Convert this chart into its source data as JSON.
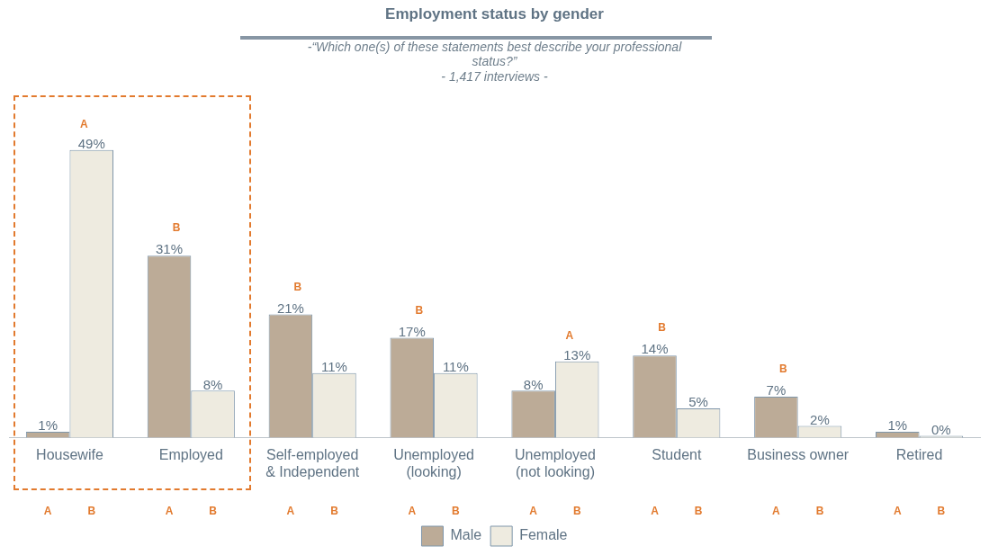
{
  "chart_data": {
    "type": "bar",
    "title": "Employment status by gender",
    "subtitle": "-“Which one(s) of these statements best describe your professional\nstatus?”\n- 1,417 interviews -",
    "categories": [
      "Housewife",
      "Employed",
      "Self-employed\n& Independent",
      "Unemployed\n(looking)",
      "Unemployed\n(not looking)",
      "Student",
      "Business owner",
      "Retired"
    ],
    "series": [
      {
        "name": "Male",
        "color": "#bcab97",
        "values": [
          1,
          31,
          21,
          17,
          8,
          14,
          7,
          1
        ],
        "value_labels": [
          "1%",
          "31%",
          "21%",
          "17%",
          "8%",
          "14%",
          "7%",
          "1%"
        ]
      },
      {
        "name": "Female",
        "color": "#eeebe0",
        "values": [
          49,
          8,
          11,
          11,
          13,
          5,
          2,
          0
        ],
        "value_labels": [
          "49%",
          "8%",
          "11%",
          "11%",
          "13%",
          "5%",
          "2%",
          "0%"
        ]
      }
    ],
    "annotations": [
      {
        "text": "A",
        "x": "Housewife",
        "y": 49
      },
      {
        "text": "B",
        "x": "Employed",
        "y": 31
      },
      {
        "text": "B",
        "x": "Self-employed\n& Independent",
        "y": 21
      },
      {
        "text": "B",
        "x": "Unemployed\n(looking)",
        "y": 17
      },
      {
        "text": "A",
        "x": "Unemployed\n(not looking)",
        "y": 13
      },
      {
        "text": "B",
        "x": "Student",
        "y": 14
      },
      {
        "text": "B",
        "x": "Business owner",
        "y": 7
      },
      "A",
      "B",
      "A",
      "B",
      "A",
      "B",
      "A",
      "B",
      "A",
      "B",
      "A",
      "B",
      "A",
      "B",
      "A",
      "B"
    ],
    "legend": "bottom",
    "grid": false,
    "tick_labels": "x"
  }
}
